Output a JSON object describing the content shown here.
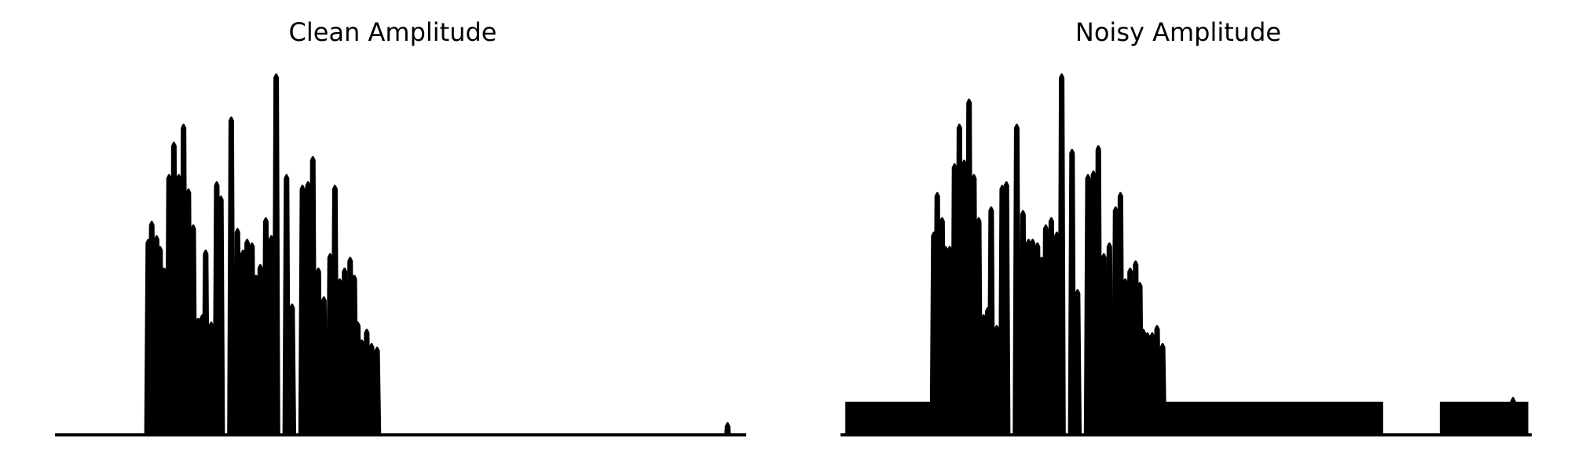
{
  "chart_data": [
    {
      "type": "area",
      "title": "Clean Amplitude",
      "xlabel": "",
      "ylabel": "",
      "axes_visible": false,
      "grid": false,
      "color": "#000000",
      "xlim": [
        0,
        1
      ],
      "ylim": [
        0,
        1
      ],
      "noise_floor": 0.0,
      "noise_segments": [],
      "peaks": [
        [
          0.135,
          0.54
        ],
        [
          0.14,
          0.59
        ],
        [
          0.147,
          0.55
        ],
        [
          0.152,
          0.52
        ],
        [
          0.158,
          0.46
        ],
        [
          0.165,
          0.72
        ],
        [
          0.172,
          0.81
        ],
        [
          0.179,
          0.72
        ],
        [
          0.186,
          0.86
        ],
        [
          0.193,
          0.68
        ],
        [
          0.2,
          0.58
        ],
        [
          0.207,
          0.32
        ],
        [
          0.213,
          0.33
        ],
        [
          0.218,
          0.51
        ],
        [
          0.226,
          0.31
        ],
        [
          0.234,
          0.7
        ],
        [
          0.24,
          0.66
        ],
        [
          0.255,
          0.88
        ],
        [
          0.264,
          0.57
        ],
        [
          0.272,
          0.51
        ],
        [
          0.278,
          0.54
        ],
        [
          0.285,
          0.53
        ],
        [
          0.291,
          0.44
        ],
        [
          0.297,
          0.47
        ],
        [
          0.305,
          0.6
        ],
        [
          0.313,
          0.55
        ],
        [
          0.32,
          1.0
        ],
        [
          0.335,
          0.72
        ],
        [
          0.343,
          0.36
        ],
        [
          0.358,
          0.69
        ],
        [
          0.366,
          0.7
        ],
        [
          0.373,
          0.77
        ],
        [
          0.381,
          0.46
        ],
        [
          0.389,
          0.38
        ],
        [
          0.398,
          0.5
        ],
        [
          0.405,
          0.69
        ],
        [
          0.412,
          0.43
        ],
        [
          0.419,
          0.46
        ],
        [
          0.427,
          0.49
        ],
        [
          0.433,
          0.44
        ],
        [
          0.438,
          0.31
        ],
        [
          0.444,
          0.26
        ],
        [
          0.451,
          0.29
        ],
        [
          0.458,
          0.25
        ],
        [
          0.466,
          0.24
        ],
        [
          0.973,
          0.03
        ]
      ]
    },
    {
      "type": "area",
      "title": "Noisy Amplitude",
      "xlabel": "",
      "ylabel": "",
      "axes_visible": false,
      "grid": false,
      "color": "#000000",
      "xlim": [
        0,
        1
      ],
      "ylim": [
        0,
        1
      ],
      "noise_floor": 0.09,
      "noise_segments": [
        [
          0.007,
          0.135
        ],
        [
          0.466,
          0.785
        ],
        [
          0.867,
          0.995
        ]
      ],
      "peaks": [
        [
          0.135,
          0.56
        ],
        [
          0.14,
          0.67
        ],
        [
          0.147,
          0.6
        ],
        [
          0.152,
          0.52
        ],
        [
          0.158,
          0.52
        ],
        [
          0.165,
          0.75
        ],
        [
          0.172,
          0.86
        ],
        [
          0.179,
          0.76
        ],
        [
          0.186,
          0.93
        ],
        [
          0.193,
          0.72
        ],
        [
          0.2,
          0.6
        ],
        [
          0.207,
          0.33
        ],
        [
          0.213,
          0.35
        ],
        [
          0.218,
          0.63
        ],
        [
          0.226,
          0.3
        ],
        [
          0.234,
          0.69
        ],
        [
          0.24,
          0.7
        ],
        [
          0.255,
          0.86
        ],
        [
          0.264,
          0.62
        ],
        [
          0.272,
          0.54
        ],
        [
          0.278,
          0.54
        ],
        [
          0.285,
          0.53
        ],
        [
          0.291,
          0.49
        ],
        [
          0.297,
          0.58
        ],
        [
          0.305,
          0.6
        ],
        [
          0.313,
          0.56
        ],
        [
          0.32,
          1.0
        ],
        [
          0.335,
          0.79
        ],
        [
          0.343,
          0.4
        ],
        [
          0.358,
          0.72
        ],
        [
          0.366,
          0.73
        ],
        [
          0.373,
          0.8
        ],
        [
          0.381,
          0.5
        ],
        [
          0.389,
          0.53
        ],
        [
          0.398,
          0.63
        ],
        [
          0.405,
          0.67
        ],
        [
          0.412,
          0.43
        ],
        [
          0.419,
          0.46
        ],
        [
          0.427,
          0.48
        ],
        [
          0.433,
          0.42
        ],
        [
          0.438,
          0.29
        ],
        [
          0.444,
          0.28
        ],
        [
          0.451,
          0.28
        ],
        [
          0.458,
          0.3
        ],
        [
          0.466,
          0.25
        ],
        [
          0.973,
          0.1
        ]
      ]
    }
  ]
}
